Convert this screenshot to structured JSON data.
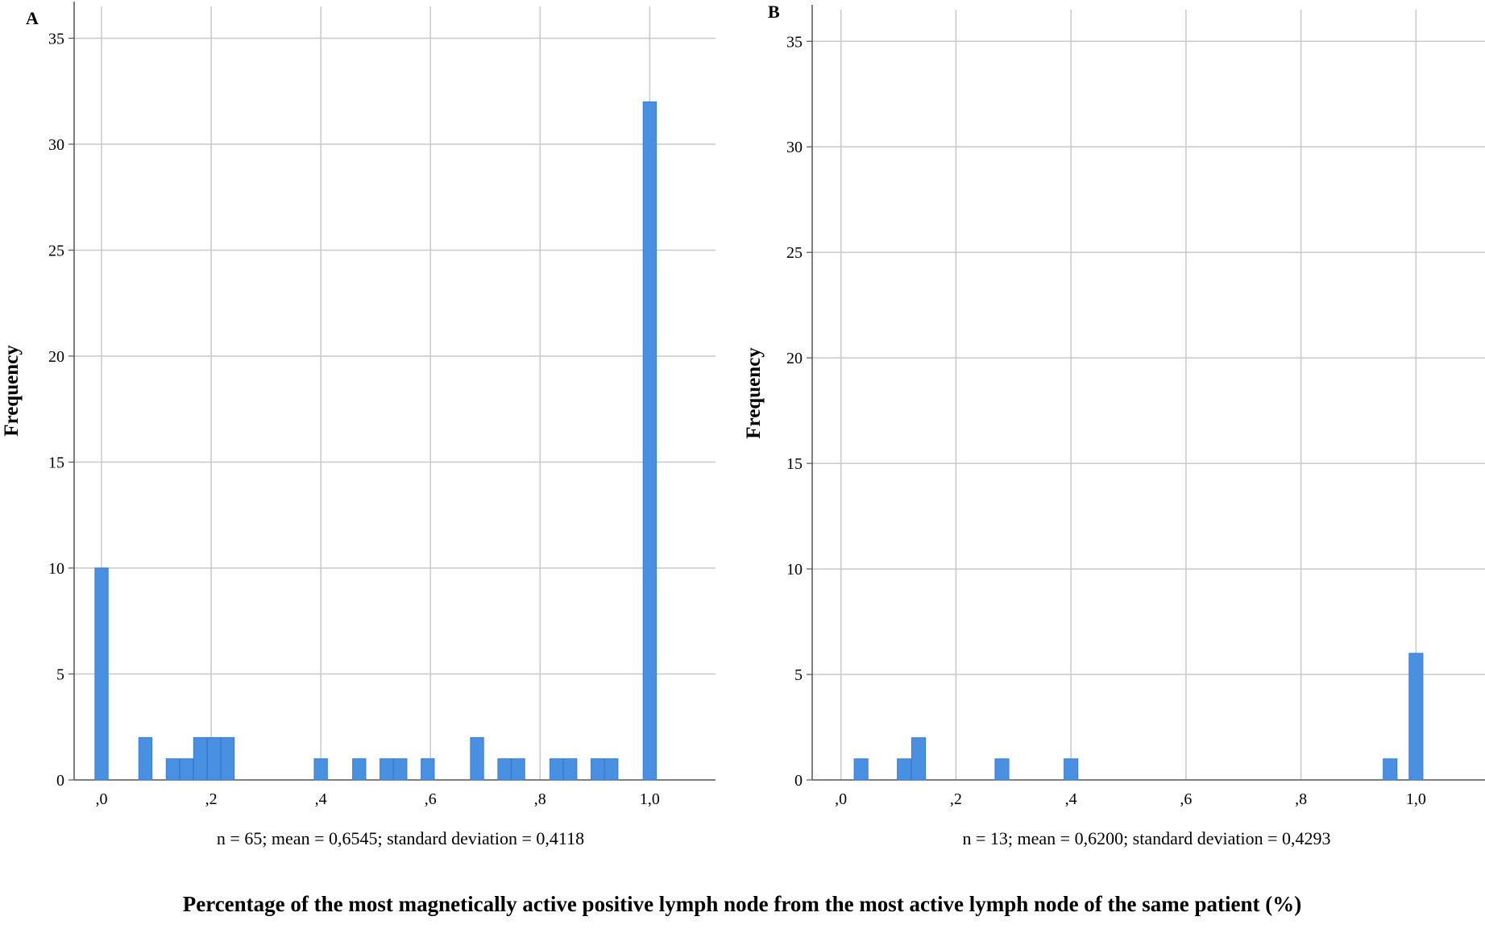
{
  "caption": "Percentage of the most magnetically active positive lymph node from the most active lymph node of the same patient (%)",
  "chart_data": [
    {
      "type": "bar",
      "panel": "A",
      "ylabel": "Frequency",
      "stats": "n = 65; mean = 0,6545; standard deviation = 0,4118",
      "xlim": [
        -0.05,
        1.12
      ],
      "ylim": [
        0,
        36.5
      ],
      "grid": true,
      "xticks": [
        0,
        0.2,
        0.4,
        0.6,
        0.8,
        1.0
      ],
      "xtick_labels": [
        ",0",
        ",2",
        ",4",
        ",6",
        ",8",
        "1,0"
      ],
      "yticks": [
        0,
        5,
        10,
        15,
        20,
        25,
        30,
        35
      ],
      "ytick_labels": [
        "0",
        "5",
        "10",
        "15",
        "20",
        "25",
        "30",
        "35"
      ],
      "bin_width": 0.024,
      "bars": [
        {
          "x": 0.0,
          "count": 10
        },
        {
          "x": 0.08,
          "count": 2
        },
        {
          "x": 0.13,
          "count": 1
        },
        {
          "x": 0.155,
          "count": 1
        },
        {
          "x": 0.18,
          "count": 2
        },
        {
          "x": 0.205,
          "count": 2
        },
        {
          "x": 0.23,
          "count": 2
        },
        {
          "x": 0.4,
          "count": 1
        },
        {
          "x": 0.47,
          "count": 1
        },
        {
          "x": 0.52,
          "count": 1
        },
        {
          "x": 0.545,
          "count": 1
        },
        {
          "x": 0.595,
          "count": 1
        },
        {
          "x": 0.685,
          "count": 2
        },
        {
          "x": 0.735,
          "count": 1
        },
        {
          "x": 0.76,
          "count": 1
        },
        {
          "x": 0.83,
          "count": 1
        },
        {
          "x": 0.855,
          "count": 1
        },
        {
          "x": 0.905,
          "count": 1
        },
        {
          "x": 0.93,
          "count": 1
        },
        {
          "x": 1.0,
          "count": 32
        }
      ]
    },
    {
      "type": "bar",
      "panel": "B",
      "ylabel": "Frequency",
      "stats": "n = 13; mean = 0,6200; standard deviation = 0,4293",
      "xlim": [
        -0.05,
        1.12
      ],
      "ylim": [
        0,
        36.5
      ],
      "grid": true,
      "xticks": [
        0,
        0.2,
        0.4,
        0.6,
        0.8,
        1.0
      ],
      "xtick_labels": [
        ",0",
        ",2",
        ",4",
        ",6",
        ",8",
        "1,0"
      ],
      "yticks": [
        0,
        5,
        10,
        15,
        20,
        25,
        30,
        35
      ],
      "ytick_labels": [
        "0",
        "5",
        "10",
        "15",
        "20",
        "25",
        "30",
        "35"
      ],
      "bin_width": 0.024,
      "bars": [
        {
          "x": 0.035,
          "count": 1
        },
        {
          "x": 0.11,
          "count": 1
        },
        {
          "x": 0.135,
          "count": 2
        },
        {
          "x": 0.28,
          "count": 1
        },
        {
          "x": 0.4,
          "count": 1
        },
        {
          "x": 0.955,
          "count": 1
        },
        {
          "x": 1.0,
          "count": 6
        }
      ]
    }
  ],
  "colors": {
    "bar_fill": "#4a90e2",
    "bar_stroke": "#3a7bd5",
    "grid": "#c8c8c8",
    "axis": "#555555"
  }
}
